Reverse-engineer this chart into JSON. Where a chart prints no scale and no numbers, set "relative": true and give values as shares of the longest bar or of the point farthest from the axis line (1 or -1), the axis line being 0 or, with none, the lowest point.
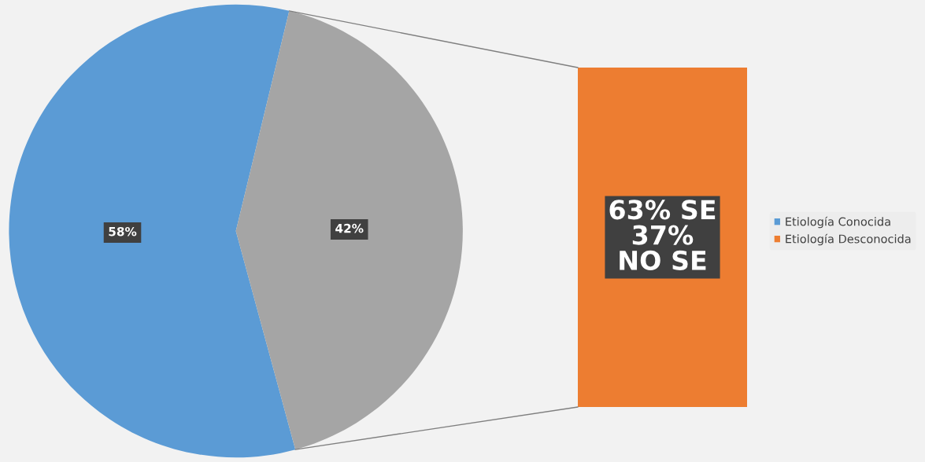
{
  "chart_data": [
    {
      "type": "pie",
      "categories": [
        "Etiología Conocida",
        null
      ],
      "values": [
        58,
        42
      ],
      "colors": [
        "#5b9bd5",
        "#a5a5a5"
      ],
      "value_labels": [
        "58%",
        "42%"
      ],
      "legend": "right"
    },
    {
      "type": "bar",
      "relative": true,
      "categories": [
        null
      ],
      "series": [
        {
          "name": "Etiología Desconocida",
          "color": "#ed7d31",
          "values": [
            1
          ]
        }
      ],
      "annotations": [
        "63% SE\n37%\nNO SE"
      ],
      "legend": "right"
    }
  ]
}
